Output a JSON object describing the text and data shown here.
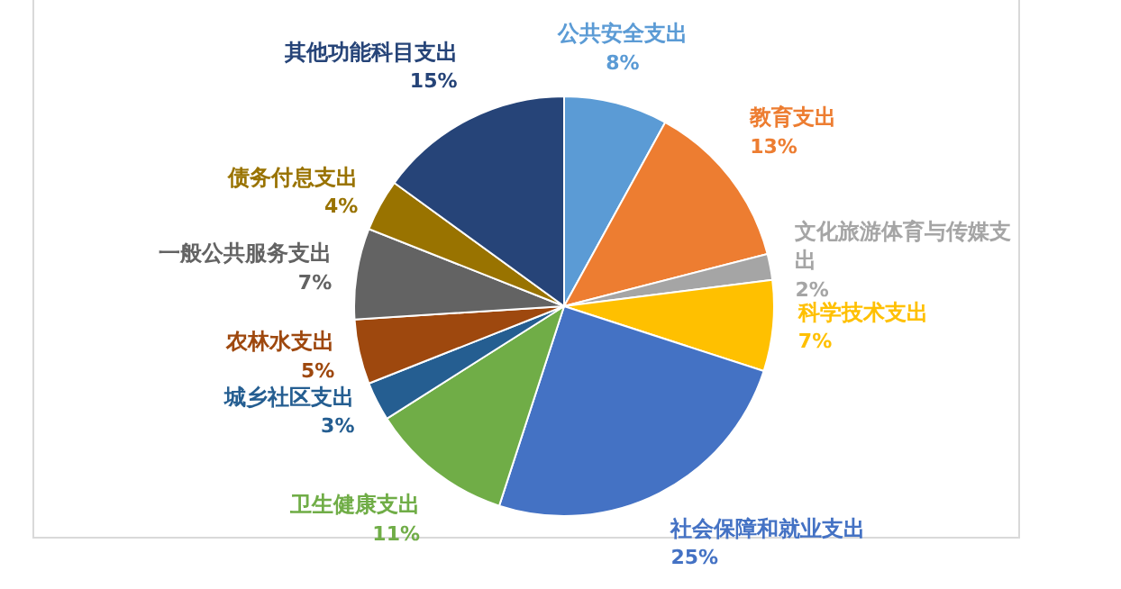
{
  "chart_data": {
    "type": "pie",
    "categories": [
      "公共安全支出",
      "教育支出",
      "文化旅游体育与传媒支出",
      "科学技术支出",
      "社会保障和就业支出",
      "卫生健康支出",
      "城乡社区支出",
      "农林水支出",
      "一般公共服务支出",
      "债务付息支出",
      "其他功能科目支出"
    ],
    "values": [
      8,
      13,
      2,
      7,
      25,
      11,
      3,
      5,
      7,
      4,
      15
    ],
    "colors": [
      "#5b9bd5",
      "#ed7d31",
      "#a5a5a5",
      "#ffc000",
      "#4472c4",
      "#70ad47",
      "#255e91",
      "#9e480e",
      "#636363",
      "#997300",
      "#264478"
    ],
    "value_labels": [
      "8%",
      "13%",
      "2%",
      "7%",
      "25%",
      "11%",
      "3%",
      "5%",
      "7%",
      "4%",
      "15%"
    ],
    "legend": false
  }
}
